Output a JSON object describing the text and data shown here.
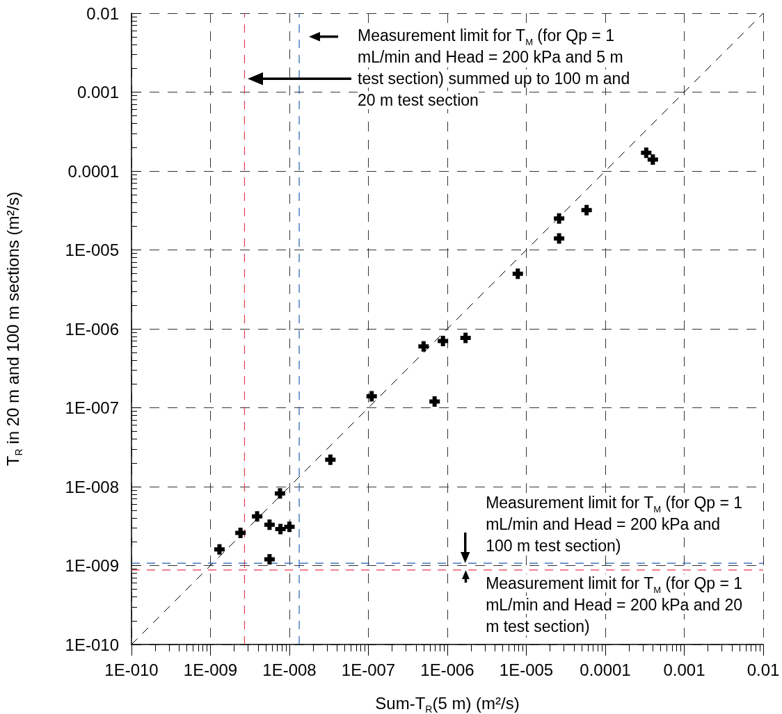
{
  "chart_data": {
    "type": "scatter",
    "xlabel": "Sum-T$_{R}$(5 m) (m²/s)",
    "ylabel": "T$_{R}$ in 20 m and 100 m sections (m²/s)",
    "log": "xy",
    "grid": true,
    "marker": "cross",
    "xlim": [
      1e-10,
      0.01
    ],
    "ylim": [
      1e-10,
      0.01
    ],
    "xticks": [
      {
        "value": 1e-10,
        "label": "1E-010"
      },
      {
        "value": 1e-09,
        "label": "1E-009"
      },
      {
        "value": 1e-08,
        "label": "1E-008"
      },
      {
        "value": 1e-07,
        "label": "1E-007"
      },
      {
        "value": 1e-06,
        "label": "1E-006"
      },
      {
        "value": 1e-05,
        "label": "1E-005"
      },
      0.0001,
      0.001,
      0.01
    ],
    "yticks": [
      {
        "value": 1e-10,
        "label": "1E-010"
      },
      {
        "value": 1e-09,
        "label": "1E-009"
      },
      {
        "value": 1e-08,
        "label": "1E-008"
      },
      {
        "value": 1e-07,
        "label": "1E-007"
      },
      {
        "value": 1e-06,
        "label": "1E-006"
      },
      {
        "value": 1e-05,
        "label": "1E-005"
      },
      0.0001,
      0.001,
      0.01
    ],
    "series": [
      {
        "color": "#000000",
        "x": [
          1.3e-09,
          2.4e-09,
          3.9e-09,
          5.6e-09,
          7.7e-09,
          1e-08,
          7.6e-09,
          5.6e-09,
          3.3e-08,
          1.1e-07,
          6.9e-07,
          5e-07,
          8.8e-07,
          1.7e-06,
          7.8e-06,
          2.6e-05,
          2.6e-05,
          5.8e-05,
          0.00033,
          0.0004
        ],
        "values": [
          1.6e-09,
          2.6e-09,
          4.2e-09,
          3.3e-09,
          2.9e-09,
          3.1e-09,
          8.2e-09,
          1.2e-09,
          2.2e-08,
          1.4e-07,
          1.2e-07,
          6e-07,
          7e-07,
          7.7e-07,
          5e-06,
          2.5e-05,
          1.4e-05,
          3.2e-05,
          0.00017,
          0.00014
        ]
      },
      {
        "type": "line",
        "color": "#000000",
        "marker": "none",
        "line_style": "dashed",
        "x": [
          1e-10,
          0.01
        ],
        "values": [
          1e-10,
          0.01
        ]
      }
    ],
    "ref_lines": [
      {
        "axis": "x",
        "value": 2.7e-09,
        "color": "#e8384f",
        "line_style": "dashed"
      },
      {
        "axis": "x",
        "value": 1.33e-08,
        "color": "#1f5fb0",
        "line_style": "dashed"
      },
      {
        "axis": "y",
        "value": 1.07e-09,
        "color": "#1f5fb0",
        "line_style": "dashed"
      },
      {
        "axis": "y",
        "value": 8.8e-10,
        "color": "#e8384f",
        "line_style": "dashed"
      }
    ],
    "annotations": [
      "Measurement limit for T$_{M}$ (for Qp = 1 mL/min and Head = 200 kPa and 5 m test section) summed up to 100 m and 20 m test section",
      {
        "text": "Measurement limit for T$_{M}$ (for Qp = 1 mL/min and Head = 200 kPa and 100 m test section)",
        "x": 1.7e-06,
        "y": 1.07e-09
      },
      {
        "text": "Measurement limit for T$_{M}$ (for Qp = 1 mL/min and Head = 200 kPa and 20 m test section)",
        "x": 1.7e-06,
        "y": 8.8e-10
      }
    ]
  }
}
